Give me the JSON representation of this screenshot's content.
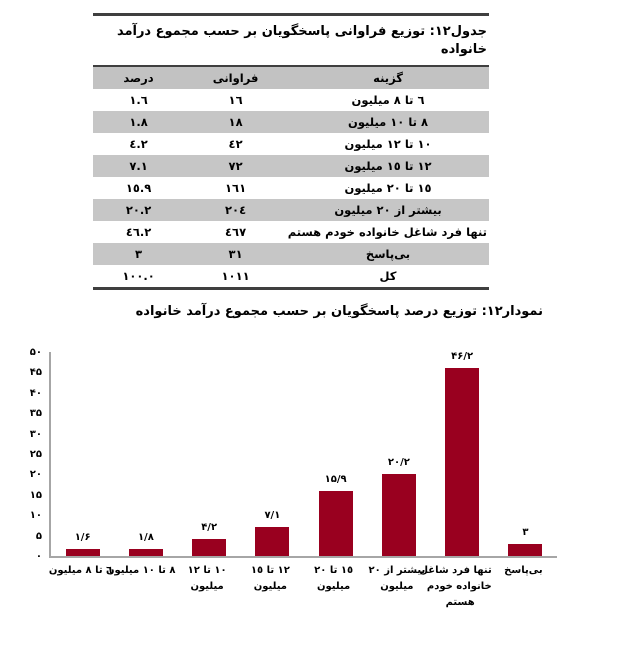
{
  "table": {
    "title": "جدول١٢: توزیع فراوانی پاسخگویان بر حسب مجموع درآمد خانواده",
    "columns": [
      "گزینه",
      "فراوانی",
      "درصد"
    ],
    "rows": [
      {
        "option": "٦ تا ٨ میلیون",
        "frequency": "١٦",
        "percent": "١.٦"
      },
      {
        "option": "٨ تا ١٠ میلیون",
        "frequency": "١٨",
        "percent": "١.٨"
      },
      {
        "option": "١٠ تا ١٢ میلیون",
        "frequency": "٤٢",
        "percent": "٤.٢"
      },
      {
        "option": "١٢ تا ١٥ میلیون",
        "frequency": "٧٢",
        "percent": "٧.١"
      },
      {
        "option": "١٥ تا ٢٠ میلیون",
        "frequency": "١٦١",
        "percent": "١٥.٩"
      },
      {
        "option": "بیشتر از ٢٠ میلیون",
        "frequency": "٢٠٤",
        "percent": "٢٠.٢"
      },
      {
        "option": "تنها فرد شاغل خانواده خودم هستم",
        "frequency": "٤٦٧",
        "percent": "٤٦.٢"
      },
      {
        "option": "بی‌پاسخ",
        "frequency": "٣١",
        "percent": "٣"
      },
      {
        "option": "کل",
        "frequency": "١٠١١",
        "percent": "١٠٠.٠"
      }
    ]
  },
  "chart": {
    "title": "نمودار١٢: توزیع درصد پاسخگویان بر حسب مجموع درآمد خانواده"
  },
  "chart_data": {
    "type": "bar",
    "title": "نمودار١٢: توزیع درصد پاسخگویان بر حسب مجموع درآمد خانواده",
    "categories": [
      "٦ تا ٨ میلیون",
      "٨ تا ١٠ میلیون",
      "١٠ تا ١٢ میلیون",
      "١٢ تا ١٥ میلیون",
      "١٥ تا ٢٠ میلیون",
      "بیشتر از ٢٠ میلیون",
      "تنها فرد شاغل خانواده خودم هستم",
      "بی‌پاسخ"
    ],
    "category_label_lines": [
      [
        "٦ تا ٨ میلیون"
      ],
      [
        "٨ تا ١٠ میلیون"
      ],
      [
        "١٠ تا ١٢",
        "میلیون"
      ],
      [
        "١٢ تا ١٥",
        "میلیون"
      ],
      [
        "١٥ تا ٢٠",
        "میلیون"
      ],
      [
        "بیشتر از ٢٠",
        "میلیون"
      ],
      [
        "تنها فرد شاغل",
        "خانواده خودم",
        "هستم"
      ],
      [
        "بی‌پاسخ"
      ]
    ],
    "values": [
      1.6,
      1.8,
      4.2,
      7.1,
      15.9,
      20.2,
      46.2,
      3
    ],
    "value_labels": [
      "۱/۶",
      "۱/۸",
      "۴/۲",
      "۷/۱",
      "۱۵/۹",
      "۲۰/۲",
      "۴۶/۲",
      "۳"
    ],
    "xlabel": "",
    "ylabel": "",
    "ylim": [
      0,
      50
    ],
    "ytick_step": 5,
    "ytick_values": [
      0,
      5,
      10,
      15,
      20,
      25,
      30,
      35,
      40,
      45,
      50
    ],
    "ytick_labels": [
      "۰",
      "۵",
      "۱۰",
      "۱۵",
      "۲۰",
      "۲۵",
      "۳۰",
      "۳۵",
      "۴۰",
      "۴۵",
      "۵۰"
    ],
    "grid": false,
    "legend": "none",
    "bar_color": "#99001f",
    "axis_color": "#a6a6a6"
  }
}
